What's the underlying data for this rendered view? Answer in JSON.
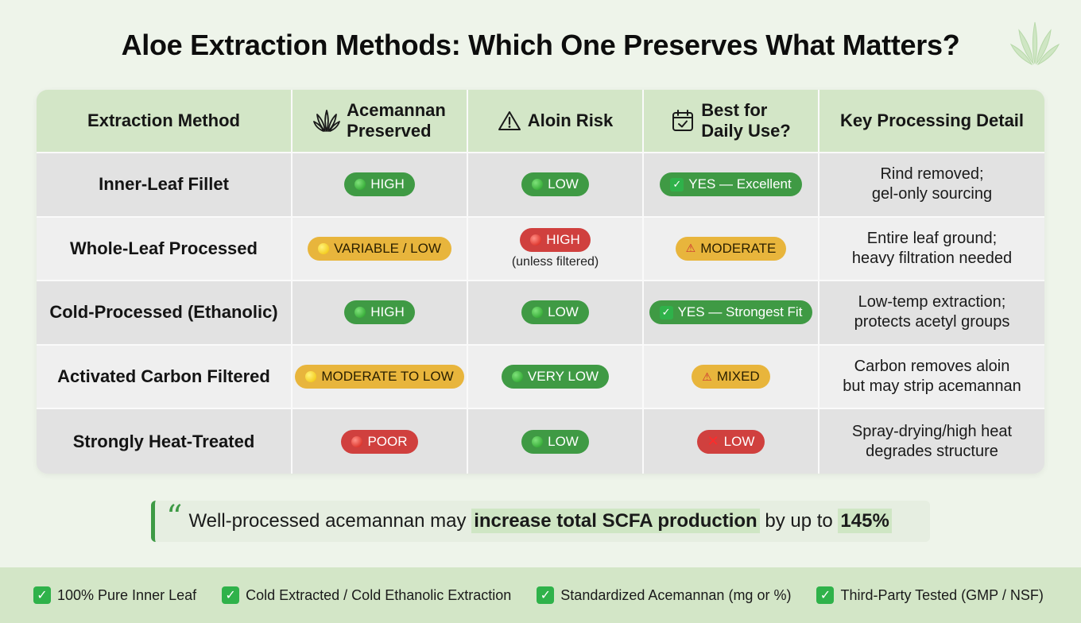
{
  "title": "Aloe Extraction Methods: Which One Preserves What Matters?",
  "logo_icon": "aloe-plant-icon",
  "headers": {
    "method": "Extraction Method",
    "acemannan": [
      "Acemannan",
      "Preserved"
    ],
    "aloin": "Aloin Risk",
    "daily": [
      "Best for",
      "Daily Use?"
    ],
    "detail": "Key Processing Detail"
  },
  "colors": {
    "green": "#3f9a44",
    "yellow": "#e8b53c",
    "red": "#d0403e",
    "header_bg": "#d3e6c7",
    "accent": "#3e9a45"
  },
  "rows": [
    {
      "method": "Inner-Leaf Fillet",
      "acemannan": {
        "label": "HIGH",
        "level": "green"
      },
      "aloin": {
        "label": "LOW",
        "level": "green",
        "note": ""
      },
      "daily": {
        "label": "YES — Excellent",
        "level": "green",
        "icon": "check"
      },
      "detail": [
        "Rind removed;",
        "gel-only sourcing"
      ]
    },
    {
      "method": "Whole-Leaf Processed",
      "acemannan": {
        "label": "VARIABLE / LOW",
        "level": "yellow"
      },
      "aloin": {
        "label": "HIGH",
        "level": "red",
        "note": "(unless filtered)"
      },
      "daily": {
        "label": "MODERATE",
        "level": "yellow",
        "icon": "warning"
      },
      "detail": [
        "Entire leaf ground;",
        "heavy filtration needed"
      ]
    },
    {
      "method": "Cold-Processed (Ethanolic)",
      "acemannan": {
        "label": "HIGH",
        "level": "green"
      },
      "aloin": {
        "label": "LOW",
        "level": "green",
        "note": ""
      },
      "daily": {
        "label": "YES — Strongest Fit",
        "level": "green",
        "icon": "check"
      },
      "detail": [
        "Low-temp extraction;",
        "protects acetyl groups"
      ]
    },
    {
      "method": "Activated Carbon Filtered",
      "acemannan": {
        "label": "MODERATE TO LOW",
        "level": "yellow"
      },
      "aloin": {
        "label": "VERY LOW",
        "level": "green",
        "note": ""
      },
      "daily": {
        "label": "MIXED",
        "level": "yellow",
        "icon": "warning"
      },
      "detail": [
        "Carbon removes aloin",
        "but may strip acemannan"
      ]
    },
    {
      "method": "Strongly Heat-Treated",
      "acemannan": {
        "label": "POOR",
        "level": "red"
      },
      "aloin": {
        "label": "LOW",
        "level": "green",
        "note": ""
      },
      "daily": {
        "label": "LOW",
        "level": "red",
        "icon": "cross"
      },
      "detail": [
        "Spray-drying/high heat",
        "degrades structure"
      ]
    }
  ],
  "quote": {
    "prefix": "Well-processed acemannan may ",
    "highlight": "increase total SCFA production",
    "middle": " by up to ",
    "value": "145%"
  },
  "footer": [
    "100% Pure Inner Leaf",
    "Cold Extracted / Cold Ethanolic Extraction",
    "Standardized Acemannan (mg or %)",
    "Third-Party Tested (GMP / NSF)"
  ]
}
